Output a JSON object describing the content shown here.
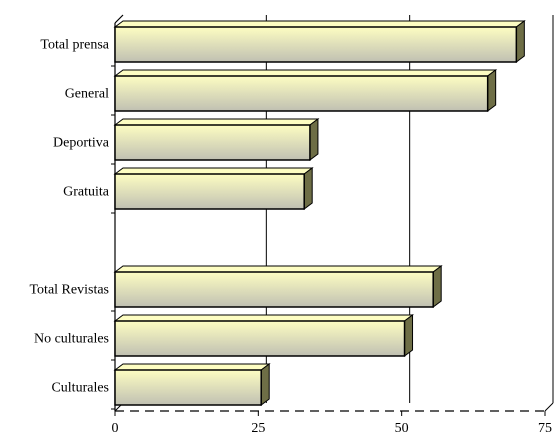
{
  "chart_data": {
    "type": "bar",
    "orientation": "horizontal",
    "style": "3d",
    "title": "",
    "xlabel": "",
    "ylabel": "",
    "categories": [
      "Total prensa",
      "General",
      "Deportiva",
      "Gratuita",
      "",
      "Total Revistas",
      "No culturales",
      "Culturales"
    ],
    "values": [
      70,
      65,
      34,
      33,
      null,
      55.5,
      50.5,
      25.5
    ],
    "xlim": [
      0,
      75
    ],
    "ticks": [
      "0",
      "25",
      "50",
      "75"
    ],
    "grid": true,
    "legend": "none",
    "colors": {
      "bar_light": "#fdfdc2",
      "bar_dark": "#c0c0b2",
      "bar_side": "#6e6e46",
      "grid": "#000000",
      "axis": "#000000"
    }
  }
}
